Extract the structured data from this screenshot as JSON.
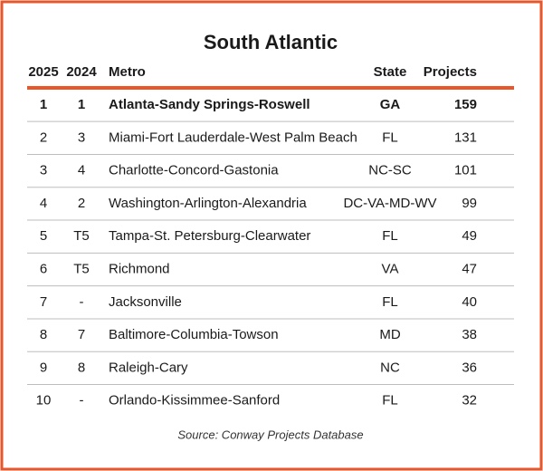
{
  "header": {
    "title": "South Atlantic"
  },
  "table": {
    "columns": [
      "2025",
      "2024",
      "Metro",
      "State",
      "Projects"
    ],
    "rows": [
      [
        1,
        1,
        "Atlanta-Sandy Springs-Roswell",
        "GA",
        159
      ],
      [
        2,
        3,
        "Miami-Fort Lauderdale-West Palm Beach",
        "FL",
        131
      ],
      [
        3,
        4,
        "Charlotte-Concord-Gastonia",
        "NC-SC",
        101
      ],
      [
        4,
        2,
        "Washington-Arlington-Alexandria",
        "DC-VA-MD-WV",
        99
      ],
      [
        5,
        "T5",
        "Tampa-St. Petersburg-Clearwater",
        "FL",
        49
      ],
      [
        6,
        "T5",
        "Richmond",
        "VA",
        47
      ],
      [
        7,
        "-",
        "Jacksonville",
        "FL",
        40
      ],
      [
        8,
        7,
        "Baltimore-Columbia-Towson",
        "MD",
        38
      ],
      [
        9,
        8,
        "Raleigh-Cary",
        "NC",
        36
      ],
      [
        10,
        "-",
        "Orlando-Kissimmee-Sanford",
        "FL",
        32
      ]
    ]
  },
  "footer": {
    "source": "Source: Conway Projects Database"
  }
}
